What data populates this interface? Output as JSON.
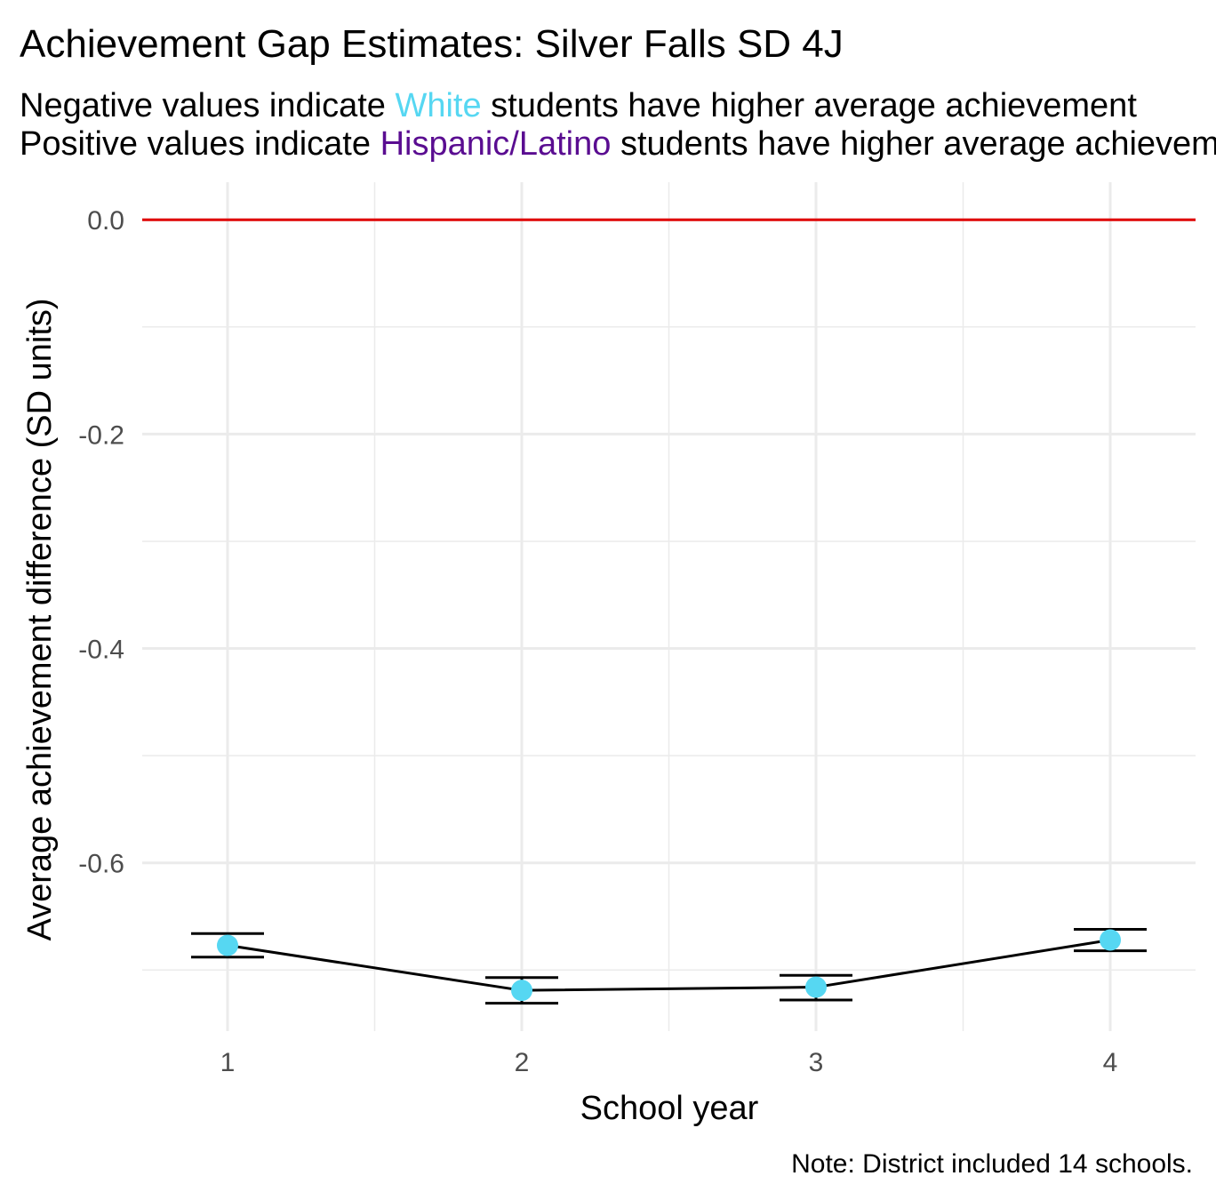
{
  "chart_data": {
    "type": "line",
    "title": "Achievement Gap Estimates: Silver Falls SD 4J",
    "subtitle": {
      "line1": {
        "before": "Negative values indicate ",
        "highlight": "White",
        "after": " students have higher average achievement"
      },
      "line2": {
        "before": "Positive values indicate ",
        "highlight": "Hispanic/Latino",
        "after": " students have higher average achievement"
      }
    },
    "xlabel": "School year",
    "ylabel": "Average achievement difference (SD units)",
    "caption": "Note: District included 14 schools.",
    "x": [
      1,
      2,
      3,
      4
    ],
    "x_tick_labels": [
      "1",
      "2",
      "3",
      "4"
    ],
    "y_tick_labels": [
      "0.0",
      "-0.2",
      "-0.4",
      "-0.6"
    ],
    "y_ticks": [
      0.0,
      -0.2,
      -0.4,
      -0.6
    ],
    "xlim": [
      0.71,
      4.29
    ],
    "ylim": [
      -0.757,
      0.035
    ],
    "series": [
      {
        "values": [
          -0.677,
          -0.719,
          -0.716,
          -0.672
        ],
        "lower": [
          -0.688,
          -0.731,
          -0.728,
          -0.682
        ],
        "upper": [
          -0.666,
          -0.707,
          -0.705,
          -0.662
        ]
      }
    ],
    "reference_line": 0.0,
    "grid": true,
    "colors": {
      "point": "#56d7f2",
      "white_label": "#56d7f2",
      "hispanic_label": "#5a0d91",
      "reference_line": "#e00000",
      "line": "#000000",
      "grid": "#ebebeb"
    }
  }
}
